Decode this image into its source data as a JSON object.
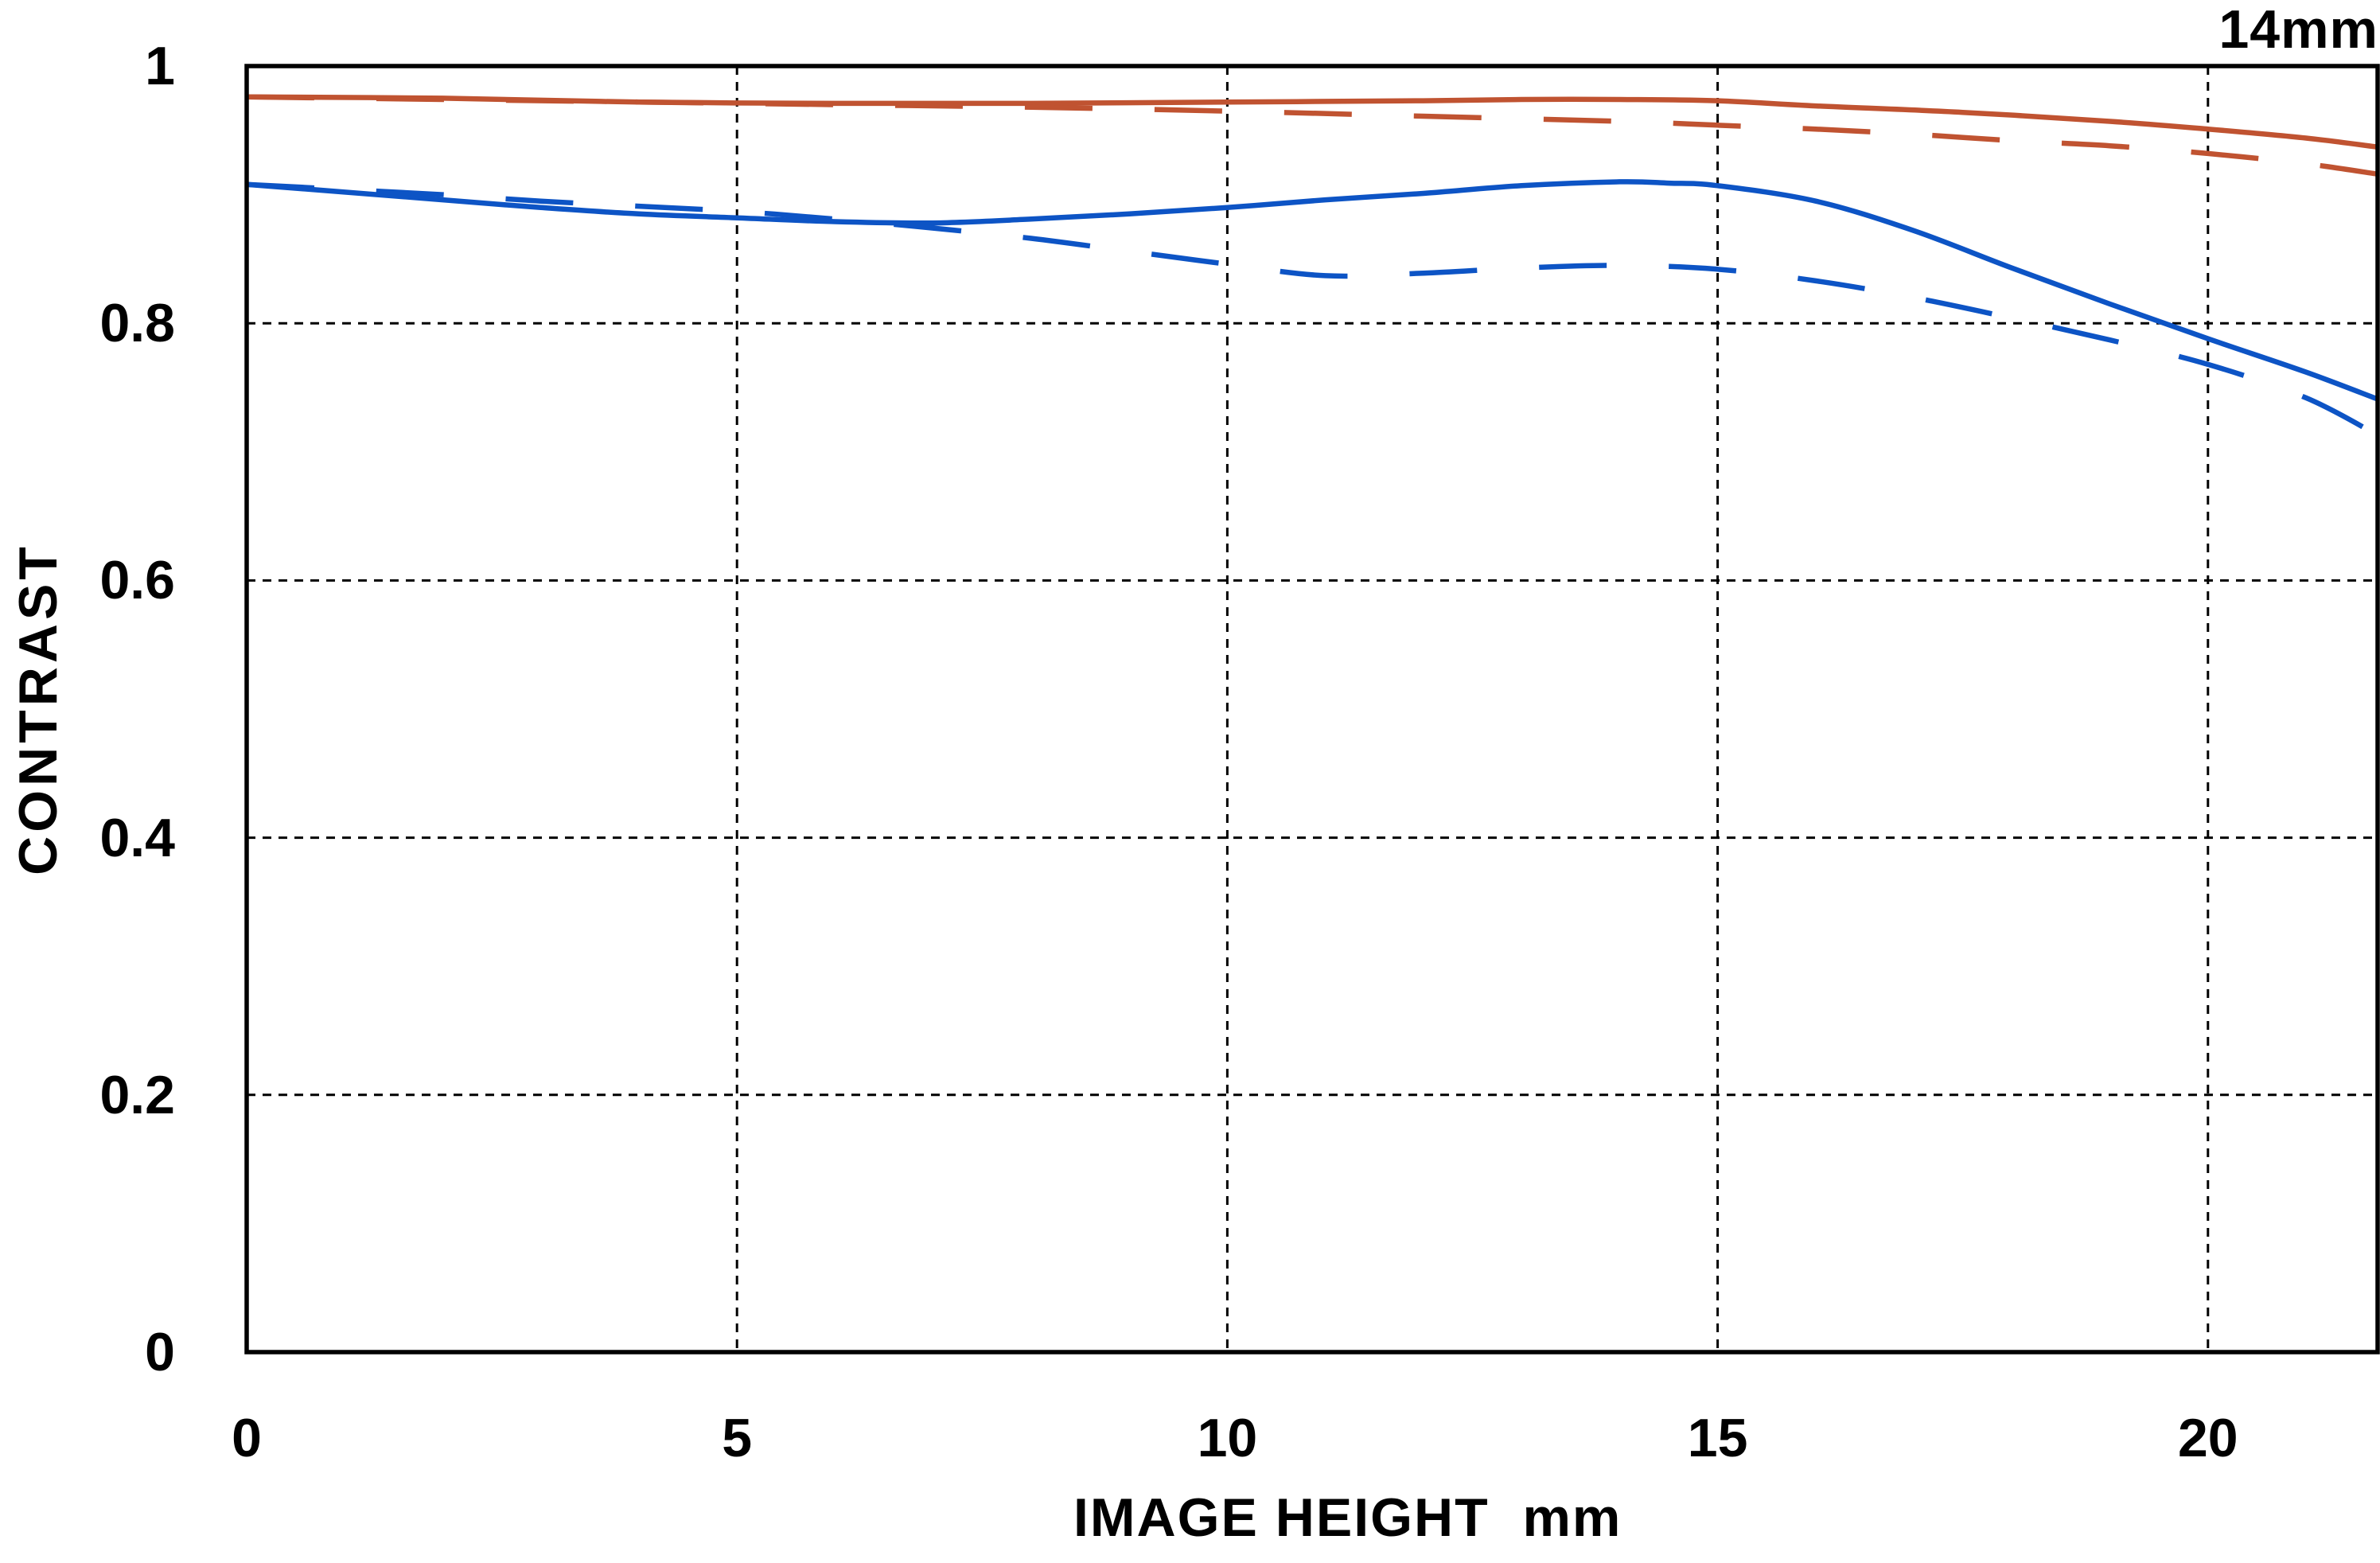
{
  "title_corner": "14mm",
  "chart_data": {
    "type": "line",
    "title": "14mm",
    "xlabel": "IMAGE HEIGHT  mm",
    "ylabel": "CONTRAST",
    "xlim": [
      0,
      21.73
    ],
    "ylim": [
      0,
      1
    ],
    "x_ticks": [
      0,
      5,
      10,
      15,
      20
    ],
    "x_tick_labels": [
      "0",
      "5",
      "10",
      "15",
      "20"
    ],
    "y_ticks": [
      0,
      0.2,
      0.4,
      0.6,
      0.8,
      1
    ],
    "y_tick_labels": [
      "0",
      "0.2",
      "0.4",
      "0.6",
      "0.8",
      "1"
    ],
    "grid": "dotted-black-at-ticks",
    "legend": "none",
    "colors": {
      "red_series": "#c05331",
      "blue_series": "#0d54c5",
      "axis": "#000000"
    },
    "series": [
      {
        "name": "red-solid",
        "color": "#c05331",
        "style": "solid",
        "points": [
          [
            0,
            0.976
          ],
          [
            2,
            0.975
          ],
          [
            4,
            0.972
          ],
          [
            6,
            0.971
          ],
          [
            8,
            0.971
          ],
          [
            10,
            0.972
          ],
          [
            12,
            0.973
          ],
          [
            13,
            0.974
          ],
          [
            14,
            0.974
          ],
          [
            15,
            0.973
          ],
          [
            16,
            0.969
          ],
          [
            17.5,
            0.964
          ],
          [
            19,
            0.957
          ],
          [
            20,
            0.951
          ],
          [
            21,
            0.944
          ],
          [
            21.73,
            0.937
          ]
        ]
      },
      {
        "name": "red-dashed",
        "color": "#c05331",
        "style": "dashed",
        "points": [
          [
            0,
            0.976
          ],
          [
            2,
            0.974
          ],
          [
            4,
            0.972
          ],
          [
            6,
            0.97
          ],
          [
            8,
            0.968
          ],
          [
            10,
            0.965
          ],
          [
            12,
            0.961
          ],
          [
            14,
            0.957
          ],
          [
            15,
            0.954
          ],
          [
            16,
            0.951
          ],
          [
            17,
            0.947
          ],
          [
            18,
            0.942
          ],
          [
            19,
            0.938
          ],
          [
            20,
            0.932
          ],
          [
            21,
            0.924
          ],
          [
            21.73,
            0.916
          ]
        ]
      },
      {
        "name": "blue-solid",
        "color": "#0d54c5",
        "style": "solid",
        "points": [
          [
            0,
            0.908
          ],
          [
            1,
            0.902
          ],
          [
            2,
            0.896
          ],
          [
            3,
            0.89
          ],
          [
            4,
            0.885
          ],
          [
            5,
            0.882
          ],
          [
            6,
            0.879
          ],
          [
            7,
            0.878
          ],
          [
            8,
            0.881
          ],
          [
            9,
            0.885
          ],
          [
            10,
            0.89
          ],
          [
            11,
            0.896
          ],
          [
            12,
            0.901
          ],
          [
            13,
            0.907
          ],
          [
            14,
            0.91
          ],
          [
            14.5,
            0.909
          ],
          [
            15,
            0.907
          ],
          [
            16,
            0.895
          ],
          [
            17,
            0.872
          ],
          [
            18,
            0.843
          ],
          [
            19,
            0.815
          ],
          [
            20,
            0.788
          ],
          [
            21,
            0.762
          ],
          [
            21.73,
            0.741
          ]
        ]
      },
      {
        "name": "blue-dashed",
        "color": "#0d54c5",
        "style": "dashed",
        "points": [
          [
            0,
            0.908
          ],
          [
            1,
            0.904
          ],
          [
            2,
            0.9
          ],
          [
            3,
            0.895
          ],
          [
            4,
            0.891
          ],
          [
            5,
            0.887
          ],
          [
            6,
            0.881
          ],
          [
            7,
            0.874
          ],
          [
            8,
            0.866
          ],
          [
            9,
            0.856
          ],
          [
            10,
            0.846
          ],
          [
            11,
            0.837
          ],
          [
            12,
            0.839
          ],
          [
            13,
            0.843
          ],
          [
            14,
            0.845
          ],
          [
            15,
            0.842
          ],
          [
            16,
            0.833
          ],
          [
            17,
            0.82
          ],
          [
            18,
            0.804
          ],
          [
            19,
            0.787
          ],
          [
            20,
            0.768
          ],
          [
            21,
            0.742
          ],
          [
            21.73,
            0.713
          ]
        ]
      }
    ]
  }
}
